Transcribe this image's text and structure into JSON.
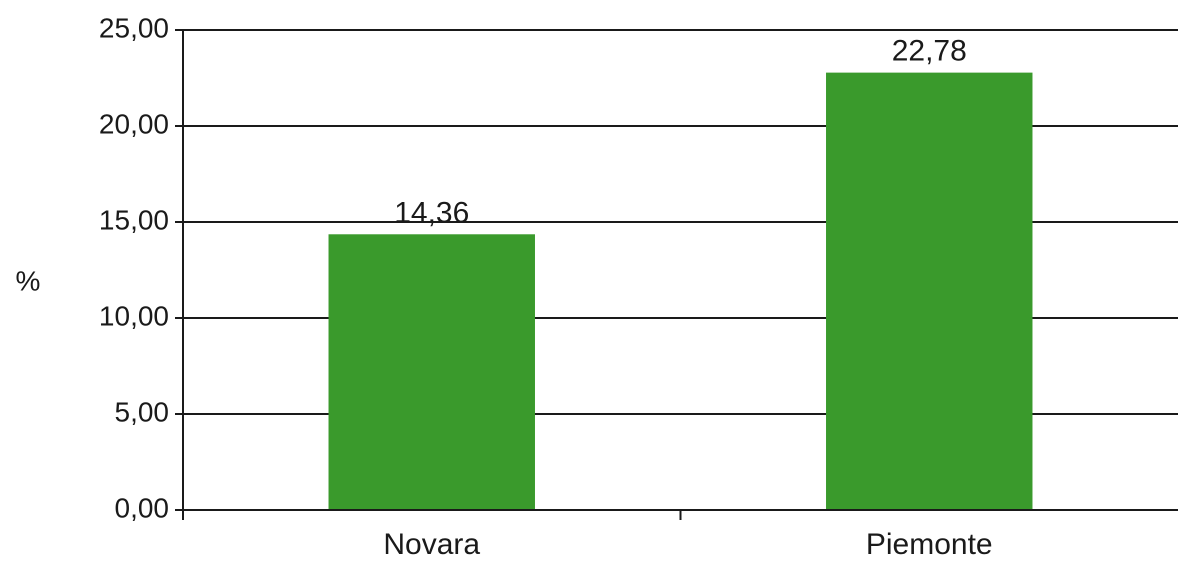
{
  "chart_data": {
    "type": "bar",
    "title": "",
    "xlabel": "",
    "ylabel": "%",
    "categories": [
      "Novara",
      "Piemonte"
    ],
    "values": [
      14.36,
      22.78
    ],
    "value_labels": [
      "14,36",
      "22,78"
    ],
    "ylim": [
      0,
      25
    ],
    "y_ticks": [
      0,
      5,
      10,
      15,
      20,
      25
    ],
    "y_tick_labels": [
      "0,00",
      "5,00",
      "10,00",
      "15,00",
      "20,00",
      "25,00"
    ],
    "grid": true,
    "legend": "none",
    "colors": {
      "bar": "#3a9a2c",
      "grid": "#1a1a1a",
      "text": "#1a1a1a"
    }
  }
}
